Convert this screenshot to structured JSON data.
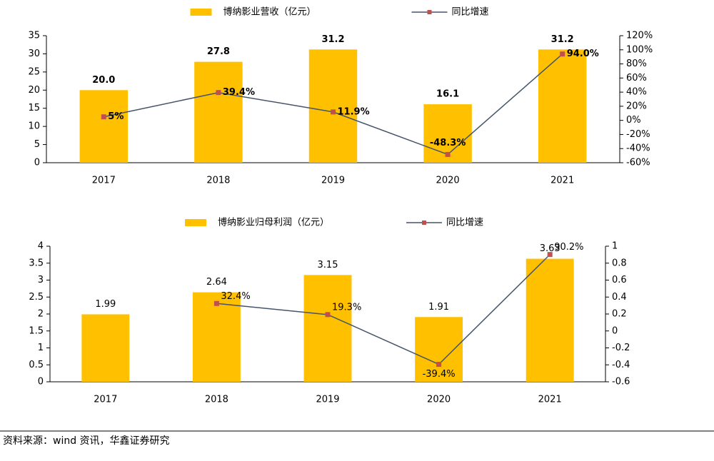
{
  "chart_data": [
    {
      "type": "bar",
      "categories": [
        "2017",
        "2018",
        "2019",
        "2020",
        "2021"
      ],
      "series": [
        {
          "name": "博纳影业营收（亿元）",
          "type": "bar",
          "color": "#ffc000",
          "values": [
            20.0,
            27.8,
            31.2,
            16.1,
            31.2
          ],
          "value_labels": [
            "20.0",
            "27.8",
            "31.2",
            "16.1",
            "31.2"
          ]
        },
        {
          "name": "同比增速",
          "type": "line",
          "axis": "y2",
          "color": "#44546a",
          "marker_color": "#c0504d",
          "values": [
            5,
            39.4,
            11.9,
            -48.3,
            94.0
          ],
          "value_labels": [
            "5%",
            "39.4%",
            "11.9%",
            "-48.3%",
            "94.0%"
          ]
        }
      ],
      "ylim": [
        0,
        35
      ],
      "yticks": [
        0,
        5,
        10,
        15,
        20,
        25,
        30,
        35
      ],
      "y2lim": [
        -60,
        120
      ],
      "y2ticks": [
        {
          "value": -60,
          "label": "-60%"
        },
        {
          "value": -40,
          "label": "-40%"
        },
        {
          "value": -20,
          "label": "-20%"
        },
        {
          "value": 0,
          "label": "0%"
        },
        {
          "value": 20,
          "label": "20%"
        },
        {
          "value": 40,
          "label": "40%"
        },
        {
          "value": 60,
          "label": "60%"
        },
        {
          "value": 80,
          "label": "80%"
        },
        {
          "value": 100,
          "label": "100%"
        },
        {
          "value": 120,
          "label": "120%"
        }
      ],
      "legend": "top"
    },
    {
      "type": "bar",
      "categories": [
        "2017",
        "2018",
        "2019",
        "2020",
        "2021"
      ],
      "series": [
        {
          "name": "博纳影业归母利润（亿元）",
          "type": "bar",
          "color": "#ffc000",
          "values": [
            1.99,
            2.64,
            3.15,
            1.91,
            3.63
          ]
        },
        {
          "name": "同比增速",
          "type": "line",
          "axis": "y2",
          "color": "#44546a",
          "marker_color": "#c0504d",
          "values": [
            null,
            0.324,
            0.193,
            -0.394,
            0.902
          ],
          "value_labels": [
            null,
            "32.4%",
            "19.3%",
            "-39.4%",
            "90.2%"
          ]
        }
      ],
      "ylim": [
        0,
        4
      ],
      "yticks": [
        0,
        0.5,
        1,
        1.5,
        2,
        2.5,
        3,
        3.5,
        4
      ],
      "y2lim": [
        -0.6,
        1
      ],
      "y2ticks": [
        -0.6,
        -0.4,
        -0.2,
        0,
        0.2,
        0.4,
        0.6,
        0.8,
        1
      ],
      "legend": "top"
    }
  ],
  "source": "资料来源：wind 资讯，华鑫证券研究"
}
